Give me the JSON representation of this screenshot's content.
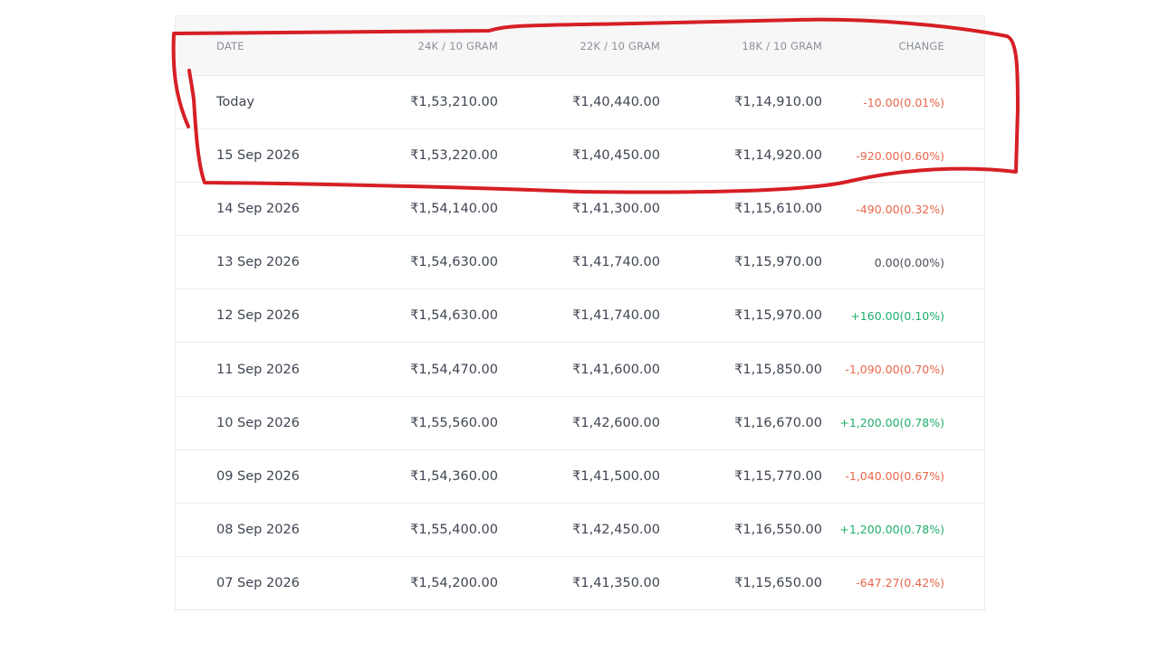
{
  "table": {
    "headers": [
      "DATE",
      "24K / 10 GRAM",
      "22K / 10 GRAM",
      "18K / 10 GRAM",
      "CHANGE"
    ],
    "rows": [
      [
        "Today",
        "₹1,53,210.00",
        "₹1,40,440.00",
        "₹1,14,910.00",
        "-10.00(0.01%)"
      ],
      [
        "15 Sep 2026",
        "₹1,53,220.00",
        "₹1,40,450.00",
        "₹1,14,920.00",
        "-920.00(0.60%)"
      ],
      [
        "14 Sep 2026",
        "₹1,54,140.00",
        "₹1,41,300.00",
        "₹1,15,610.00",
        "-490.00(0.32%)"
      ],
      [
        "13 Sep 2026",
        "₹1,54,630.00",
        "₹1,41,740.00",
        "₹1,15,970.00",
        "0.00(0.00%)"
      ],
      [
        "12 Sep 2026",
        "₹1,54,630.00",
        "₹1,41,740.00",
        "₹1,15,970.00",
        "+160.00(0.10%)"
      ],
      [
        "11 Sep 2026",
        "₹1,54,470.00",
        "₹1,41,600.00",
        "₹1,15,850.00",
        "-1,090.00(0.70%)"
      ],
      [
        "10 Sep 2026",
        "₹1,55,560.00",
        "₹1,42,600.00",
        "₹1,16,670.00",
        "+1,200.00(0.78%)"
      ],
      [
        "09 Sep 2026",
        "₹1,54,360.00",
        "₹1,41,500.00",
        "₹1,15,770.00",
        "-1,040.00(0.67%)"
      ],
      [
        "08 Sep 2026",
        "₹1,55,400.00",
        "₹1,42,450.00",
        "₹1,16,550.00",
        "+1,200.00(0.78%)"
      ],
      [
        "07 Sep 2026",
        "₹1,54,200.00",
        "₹1,41,350.00",
        "₹1,15,650.00",
        "-647.27(0.42%)"
      ]
    ]
  }
}
